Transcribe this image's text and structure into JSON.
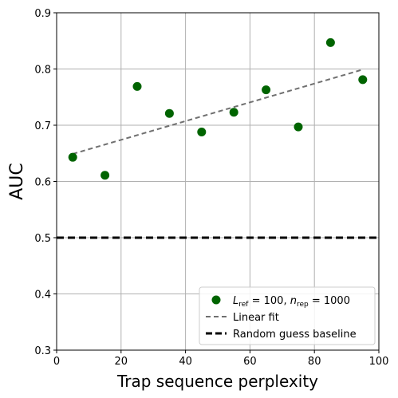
{
  "chart_data": {
    "type": "scatter",
    "title": "",
    "xlabel": "Trap sequence perplexity",
    "ylabel": "AUC",
    "xlim": [
      0,
      100
    ],
    "ylim": [
      0.3,
      0.9
    ],
    "x_ticks": [
      "0",
      "20",
      "40",
      "60",
      "80",
      "100"
    ],
    "y_ticks": [
      "0.3",
      "0.4",
      "0.5",
      "0.6",
      "0.7",
      "0.8",
      "0.9"
    ],
    "grid": true,
    "legend_position": "lower-right",
    "series": [
      {
        "name": "L_ref = 100, n_rep = 1000",
        "kind": "scatter",
        "color": "#006400",
        "x": [
          5,
          15,
          25,
          35,
          45,
          55,
          65,
          75,
          85,
          95
        ],
        "y": [
          0.643,
          0.611,
          0.769,
          0.721,
          0.688,
          0.723,
          0.763,
          0.697,
          0.847,
          0.781
        ]
      },
      {
        "name": "Linear fit",
        "kind": "line",
        "style": "dashed",
        "color": "#707070",
        "x": [
          5,
          95
        ],
        "y": [
          0.649,
          0.799
        ]
      },
      {
        "name": "Random guess baseline",
        "kind": "line",
        "style": "dashed",
        "color": "#000000",
        "x": [
          0,
          100
        ],
        "y": [
          0.5,
          0.5
        ]
      }
    ]
  }
}
